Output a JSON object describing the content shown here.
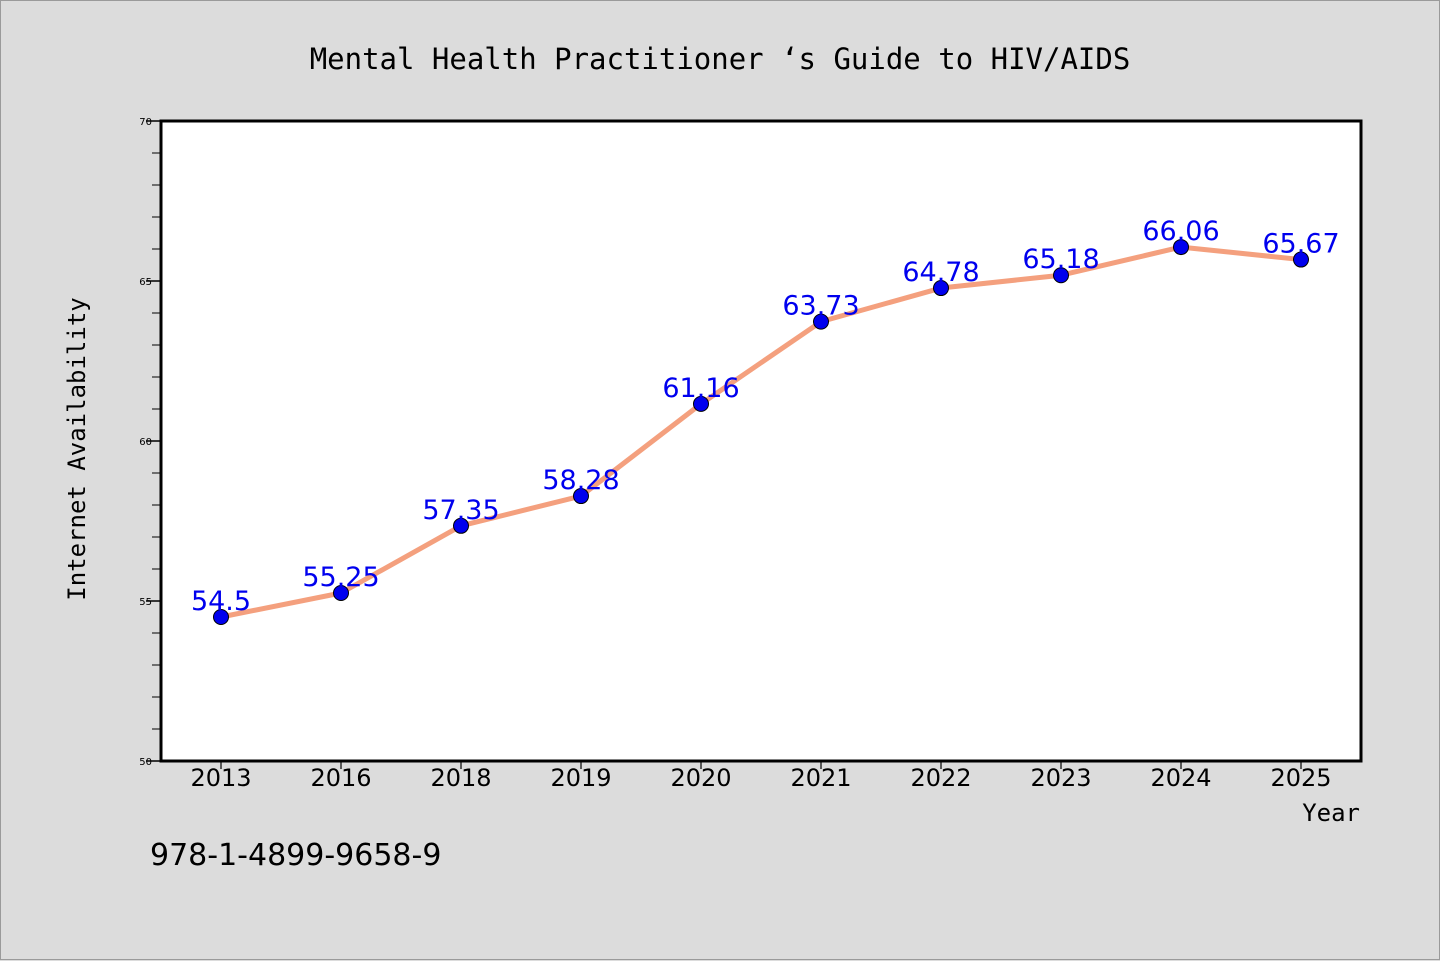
{
  "chart_data": {
    "type": "line",
    "title": "Mental Health Practitioner ‘s Guide to HIV/AIDS",
    "xlabel": "Year",
    "ylabel": "Internet Availability",
    "categories": [
      "2013",
      "2016",
      "2018",
      "2019",
      "2020",
      "2021",
      "2022",
      "2023",
      "2024",
      "2025"
    ],
    "series": [
      {
        "values": [
          54.5,
          55.25,
          57.35,
          58.28,
          61.16,
          63.73,
          64.78,
          65.18,
          66.06,
          65.67
        ],
        "data_labels": [
          "54.5",
          "55.25",
          "57.35",
          "58.28",
          "61.16",
          "63.73",
          "64.78",
          "65.18",
          "66.06",
          "65.67"
        ]
      }
    ],
    "ylim": [
      50,
      70
    ],
    "yticks": [
      50,
      55,
      60,
      65,
      70
    ],
    "y_minor_step": 1,
    "grid": false,
    "line_color": "#f4a07e",
    "marker_color": "#0000ee",
    "label_color": "#0000ee"
  },
  "footer": {
    "isbn": "978-1-4899-9658-9"
  }
}
